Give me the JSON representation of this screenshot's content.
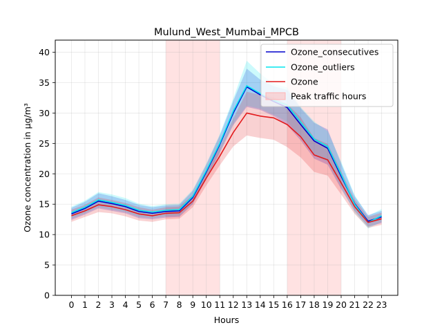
{
  "chart_data": {
    "type": "line",
    "title": "Mulund_West_Mumbai_MPCB",
    "xlabel": "Hours",
    "ylabel": "Ozone concentration in µg/m³",
    "x": [
      0,
      1,
      2,
      3,
      4,
      5,
      6,
      7,
      8,
      9,
      10,
      11,
      12,
      13,
      14,
      15,
      16,
      17,
      18,
      19,
      20,
      21,
      22,
      23
    ],
    "xticks": [
      "0",
      "1",
      "2",
      "3",
      "4",
      "5",
      "6",
      "7",
      "8",
      "9",
      "10",
      "11",
      "12",
      "13",
      "14",
      "15",
      "16",
      "17",
      "18",
      "19",
      "20",
      "21",
      "22",
      "23"
    ],
    "xlim": [
      -1.2,
      24.2
    ],
    "ylim": [
      0,
      42
    ],
    "yticks": [
      "0",
      "5",
      "10",
      "15",
      "20",
      "25",
      "30",
      "35",
      "40"
    ],
    "grid": true,
    "legend_position": "top-right",
    "peak_label": "Peak traffic hours",
    "peak_hours": [
      [
        7,
        11
      ],
      [
        16,
        20
      ]
    ],
    "peak_color": "#ffb3b3",
    "series": [
      {
        "name": "Ozone_consecutives",
        "color": "#0000cc",
        "values": [
          13.4,
          14.3,
          15.5,
          15.1,
          14.6,
          13.8,
          13.5,
          13.8,
          13.9,
          16.1,
          20.3,
          24.8,
          30.0,
          34.3,
          33.0,
          31.9,
          30.9,
          28.1,
          25.4,
          24.2,
          19.6,
          15.1,
          12.2,
          12.9
        ],
        "lower": [
          12.4,
          13.3,
          14.3,
          13.9,
          13.5,
          12.7,
          12.5,
          12.8,
          12.9,
          15.0,
          19.1,
          23.4,
          28.0,
          31.0,
          30.5,
          29.5,
          28.0,
          25.5,
          22.5,
          21.5,
          17.5,
          13.9,
          11.3,
          11.9
        ],
        "upper": [
          14.4,
          15.4,
          16.8,
          16.3,
          15.7,
          14.9,
          14.5,
          14.8,
          14.9,
          17.2,
          21.5,
          26.3,
          32.0,
          37.3,
          35.5,
          34.4,
          33.8,
          30.8,
          28.4,
          27.3,
          21.7,
          16.3,
          13.2,
          13.9
        ]
      },
      {
        "name": "Ozone_outliers",
        "color": "#00e5ee",
        "values": [
          13.6,
          14.5,
          15.7,
          15.3,
          14.8,
          14.0,
          13.7,
          14.0,
          14.1,
          16.3,
          20.5,
          25.0,
          30.3,
          34.5,
          33.2,
          32.1,
          31.3,
          28.5,
          25.7,
          24.5,
          19.9,
          15.0,
          12.0,
          13.1
        ],
        "lower": [
          12.6,
          13.5,
          14.5,
          14.1,
          13.7,
          12.9,
          12.7,
          13.0,
          13.1,
          15.2,
          19.3,
          23.6,
          28.2,
          31.2,
          30.7,
          29.7,
          28.6,
          26.0,
          23.0,
          22.0,
          17.8,
          13.6,
          11.0,
          12.1
        ],
        "upper": [
          14.6,
          15.6,
          17.0,
          16.6,
          16.0,
          15.1,
          14.7,
          15.0,
          15.1,
          17.4,
          21.7,
          26.5,
          32.4,
          38.6,
          36.5,
          34.8,
          34.2,
          31.0,
          28.6,
          27.0,
          22.0,
          16.5,
          13.1,
          14.2
        ]
      },
      {
        "name": "Ozone",
        "color": "#e31a1c",
        "values": [
          13.1,
          13.9,
          14.9,
          14.6,
          14.1,
          13.4,
          13.1,
          13.5,
          13.6,
          15.5,
          19.3,
          22.9,
          26.8,
          30.0,
          29.5,
          29.2,
          28.1,
          26.1,
          23.1,
          22.3,
          18.5,
          14.6,
          12.0,
          12.6
        ],
        "lower": [
          12.1,
          12.9,
          13.7,
          13.5,
          13.0,
          12.3,
          12.1,
          12.5,
          12.6,
          14.5,
          18.1,
          21.4,
          24.5,
          26.3,
          25.9,
          25.6,
          24.4,
          22.7,
          20.3,
          19.7,
          16.6,
          13.4,
          11.1,
          11.6
        ],
        "upper": [
          14.1,
          14.9,
          16.1,
          15.7,
          15.2,
          14.5,
          14.1,
          14.5,
          14.6,
          16.5,
          20.5,
          24.4,
          29.1,
          33.5,
          33.0,
          32.6,
          31.5,
          29.3,
          25.9,
          24.9,
          20.4,
          15.8,
          12.9,
          13.6
        ]
      }
    ]
  }
}
